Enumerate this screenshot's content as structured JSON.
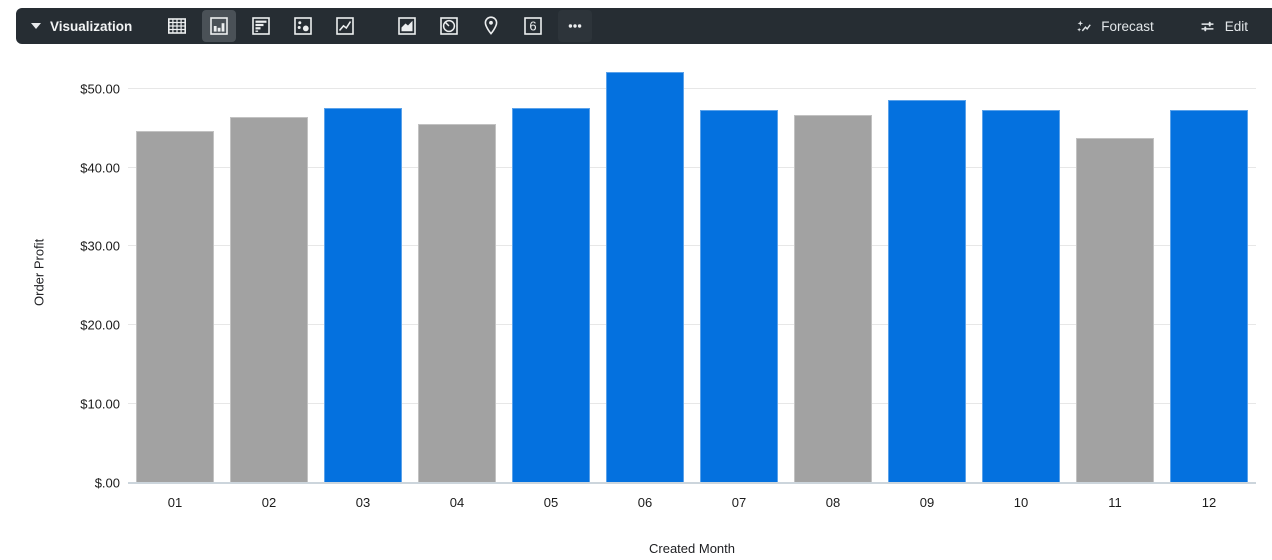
{
  "toolbar": {
    "title": "Visualization",
    "forecast_label": "Forecast",
    "edit_label": "Edit",
    "single_value_glyph": "6",
    "chart_types": [
      {
        "id": "table",
        "selected": false
      },
      {
        "id": "column",
        "selected": true
      },
      {
        "id": "bar",
        "selected": false
      },
      {
        "id": "scatter",
        "selected": false
      },
      {
        "id": "line",
        "selected": false
      },
      {
        "id": "area",
        "selected": false
      },
      {
        "id": "pie",
        "selected": false
      },
      {
        "id": "map",
        "selected": false
      },
      {
        "id": "single-value",
        "selected": false
      },
      {
        "id": "more",
        "selected": false
      }
    ],
    "colors": {
      "bg": "#262D33",
      "selected_bg": "#4A5157",
      "icon": "#ECEEEF"
    }
  },
  "chart_data": {
    "type": "bar",
    "title": "",
    "xlabel": "Created Month",
    "ylabel": "Order Profit",
    "categories": [
      "01",
      "02",
      "03",
      "04",
      "05",
      "06",
      "07",
      "08",
      "09",
      "10",
      "11",
      "12"
    ],
    "series": [
      {
        "name": "Order Profit",
        "values": [
          44.6,
          46.4,
          47.6,
          45.6,
          47.6,
          52.1,
          47.3,
          46.7,
          48.6,
          47.3,
          43.7,
          47.3
        ]
      }
    ],
    "bar_colors": [
      "gray",
      "gray",
      "blue",
      "gray",
      "blue",
      "blue",
      "blue",
      "gray",
      "blue",
      "blue",
      "gray",
      "blue"
    ],
    "palette": {
      "gray": "#A2A2A2",
      "blue": "#0471DF"
    },
    "y_ticks": [
      {
        "value": 0,
        "label": "$.00"
      },
      {
        "value": 10,
        "label": "$10.00"
      },
      {
        "value": 20,
        "label": "$20.00"
      },
      {
        "value": 30,
        "label": "$30.00"
      },
      {
        "value": 40,
        "label": "$40.00"
      },
      {
        "value": 50,
        "label": "$50.00"
      }
    ],
    "ylim": [
      0,
      53.4
    ],
    "grid": true,
    "legend": "none"
  }
}
